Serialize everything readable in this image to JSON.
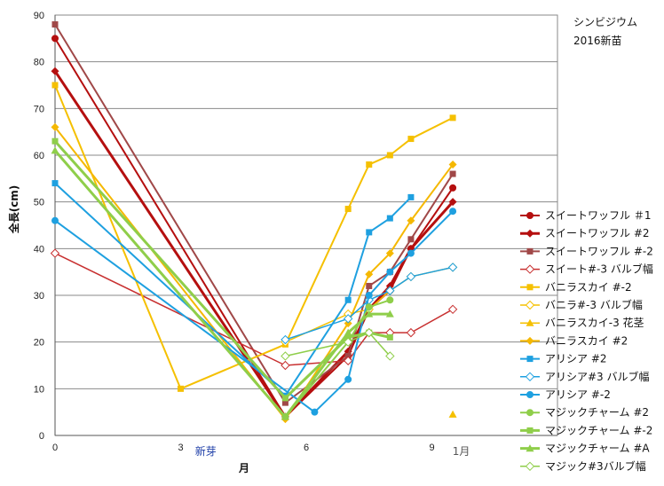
{
  "chart_data": {
    "type": "line",
    "title": "シンビジウム",
    "subtitle": "2016新苗",
    "xlabel": "月",
    "ylabel": "全長(cm)",
    "xlim": [
      0,
      12
    ],
    "ylim": [
      0,
      90
    ],
    "x_ticks": [
      0,
      3,
      6,
      9
    ],
    "y_ticks": [
      0,
      10,
      20,
      30,
      40,
      50,
      60,
      70,
      80,
      90
    ],
    "grid": "horizontal",
    "legend_position": "right",
    "annotations": [
      {
        "text": "新芽",
        "x": 3.6,
        "y": -1.5,
        "color": "#1f3fa8"
      },
      {
        "text": "1月",
        "x": 9.7,
        "y": -1.5,
        "color": "#555555"
      }
    ],
    "series": [
      {
        "name": "スイートワッフル ＃1",
        "color": "#b50f0f",
        "marker": "circle",
        "width": 2,
        "points": [
          [
            0,
            85
          ],
          [
            5.5,
            4
          ],
          [
            7,
            17
          ],
          [
            7.5,
            27
          ],
          [
            8,
            31
          ],
          [
            8.5,
            40
          ],
          [
            9.5,
            53
          ]
        ]
      },
      {
        "name": "スイートワッフル #2",
        "color": "#b50f0f",
        "marker": "diamond",
        "width": 3,
        "points": [
          [
            0,
            78
          ],
          [
            5.5,
            4
          ],
          [
            7,
            18
          ],
          [
            7.5,
            27
          ],
          [
            8,
            32
          ],
          [
            8.5,
            40
          ],
          [
            9.5,
            50
          ]
        ]
      },
      {
        "name": "スイートワッフル #-2",
        "color": "#a04848",
        "marker": "square",
        "width": 2,
        "points": [
          [
            0,
            88
          ],
          [
            5.5,
            7
          ],
          [
            7,
            17
          ],
          [
            7.5,
            32
          ],
          [
            8,
            35
          ],
          [
            8.5,
            42
          ],
          [
            9.5,
            56
          ]
        ]
      },
      {
        "name": "スイート#-3 バルブ幅",
        "color": "#c83030",
        "marker": "diamond-open",
        "width": 1.5,
        "points": [
          [
            0,
            39
          ],
          [
            5.5,
            15
          ],
          [
            7,
            16
          ],
          [
            7.5,
            22
          ],
          [
            8,
            22
          ],
          [
            8.5,
            22
          ],
          [
            9.5,
            27
          ]
        ]
      },
      {
        "name": "バニラスカイ #-2",
        "color": "#f5c000",
        "marker": "square",
        "width": 2,
        "points": [
          [
            0,
            75
          ],
          [
            3,
            10
          ],
          [
            5.5,
            19.5
          ],
          [
            7,
            48.5
          ],
          [
            7.5,
            58
          ],
          [
            8,
            60
          ],
          [
            8.5,
            63.5
          ],
          [
            9.5,
            68
          ]
        ]
      },
      {
        "name": "バニラ#-3 バルブ幅",
        "color": "#f5c000",
        "marker": "diamond-open",
        "width": 1.5,
        "points": [
          [
            5.5,
            20
          ],
          [
            7,
            26
          ],
          [
            7.5,
            27
          ],
          [
            8,
            31
          ],
          [
            8.5,
            34
          ],
          [
            9.5,
            36
          ]
        ]
      },
      {
        "name": "バニラスカイ-3 花茎",
        "color": "#f5c000",
        "marker": "triangle",
        "width": 1.5,
        "points": [
          [
            9.5,
            4.5
          ]
        ]
      },
      {
        "name": "バニラスカイ #2",
        "color": "#f5b800",
        "marker": "diamond",
        "width": 2,
        "points": [
          [
            0,
            66
          ],
          [
            5.5,
            3.5
          ],
          [
            7,
            24
          ],
          [
            7.5,
            34.5
          ],
          [
            8,
            39
          ],
          [
            8.5,
            46
          ],
          [
            9.5,
            58
          ]
        ]
      },
      {
        "name": "アリシア #2",
        "color": "#1ea0e0",
        "marker": "square",
        "width": 2,
        "points": [
          [
            0,
            54
          ],
          [
            5.5,
            8.5
          ],
          [
            7,
            29
          ],
          [
            7.5,
            43.5
          ],
          [
            8,
            46.5
          ],
          [
            8.5,
            51
          ]
        ]
      },
      {
        "name": "アリシア#3 バルブ幅",
        "color": "#1ea0e0",
        "marker": "diamond-open",
        "width": 1.5,
        "points": [
          [
            5.5,
            20.5
          ],
          [
            7,
            25
          ],
          [
            7.5,
            29
          ],
          [
            8,
            31
          ],
          [
            8.5,
            34
          ],
          [
            9.5,
            36
          ]
        ]
      },
      {
        "name": "アリシア #-2",
        "color": "#1ea0e0",
        "marker": "circle",
        "width": 2,
        "points": [
          [
            0,
            46
          ],
          [
            6.2,
            5
          ],
          [
            7,
            12
          ],
          [
            7.5,
            30
          ],
          [
            8,
            35
          ],
          [
            8.5,
            39
          ],
          [
            9.5,
            48
          ]
        ]
      },
      {
        "name": "マジックチャーム #2",
        "color": "#8fce4a",
        "marker": "circle",
        "width": 2,
        "points": [
          [
            5.5,
            4
          ],
          [
            7,
            20
          ],
          [
            7.5,
            27.5
          ],
          [
            8,
            29
          ]
        ]
      },
      {
        "name": "マジックチャーム #-2",
        "color": "#8fce4a",
        "marker": "square",
        "width": 3,
        "points": [
          [
            0,
            63
          ],
          [
            5.5,
            8
          ],
          [
            7,
            21
          ],
          [
            7.5,
            22
          ],
          [
            8,
            21
          ]
        ]
      },
      {
        "name": "マジックチャーム #A",
        "color": "#8fce4a",
        "marker": "triangle",
        "width": 3,
        "points": [
          [
            0,
            61
          ],
          [
            5.5,
            4
          ],
          [
            7,
            22
          ],
          [
            7.5,
            26
          ],
          [
            8,
            26
          ]
        ]
      },
      {
        "name": "マジック#3バルブ幅",
        "color": "#8fce4a",
        "marker": "diamond-open",
        "width": 1.5,
        "points": [
          [
            5.5,
            17
          ],
          [
            7,
            20
          ],
          [
            7.5,
            22
          ],
          [
            8,
            17
          ]
        ]
      }
    ]
  }
}
